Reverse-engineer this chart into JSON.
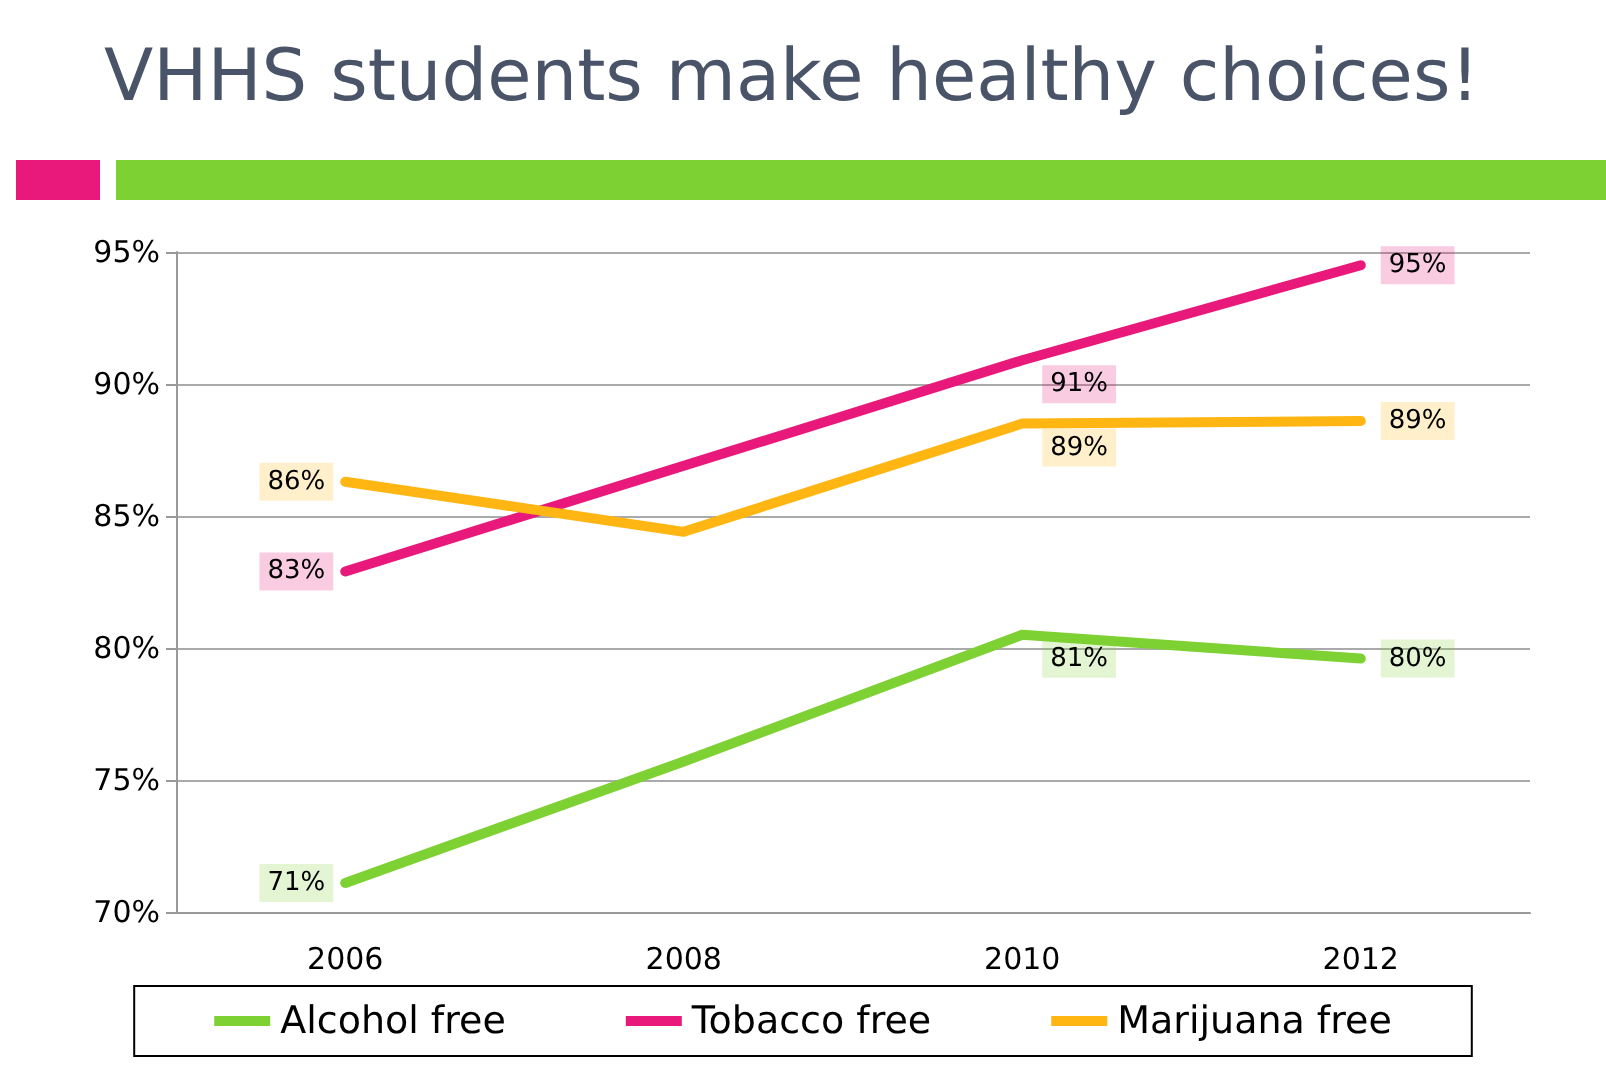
{
  "chart_data": {
    "type": "line",
    "title": "VHHS students make healthy choices!",
    "categories": [
      "2006",
      "2008",
      "2010",
      "2012"
    ],
    "series": [
      {
        "name": "Alcohol free",
        "color": "#7ed132",
        "values": [
          71.1,
          75.7,
          80.5,
          79.6
        ],
        "value_labels": [
          "71%",
          null,
          "81%",
          "80%"
        ]
      },
      {
        "name": "Tobacco free",
        "color": "#e8197a",
        "values": [
          82.9,
          86.9,
          90.9,
          94.5
        ],
        "value_labels": [
          "83%",
          null,
          "91%",
          "95%"
        ]
      },
      {
        "name": "Marijuana free",
        "color": "#ffb612",
        "values": [
          86.3,
          84.4,
          88.5,
          88.6
        ],
        "value_labels": [
          "86%",
          null,
          "89%",
          "89%"
        ]
      }
    ],
    "ylim": [
      70,
      95
    ],
    "yticks": [
      {
        "value": 70,
        "label": "70%"
      },
      {
        "value": 75,
        "label": "75%"
      },
      {
        "value": 80,
        "label": "80%"
      },
      {
        "value": 85,
        "label": "85%"
      },
      {
        "value": 90,
        "label": "90%"
      },
      {
        "value": 95,
        "label": "95%"
      }
    ],
    "grid": "y",
    "legend": "bottom",
    "marker": "none",
    "line_style": "solid"
  }
}
